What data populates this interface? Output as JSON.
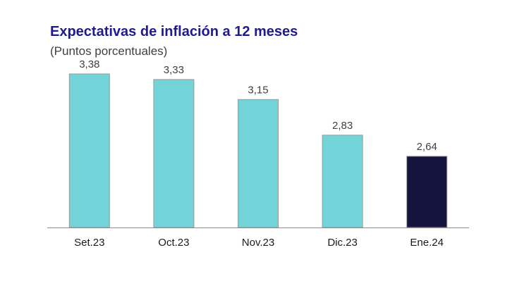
{
  "chart_data": {
    "type": "bar",
    "title": "Expectativas de inflación a 12 meses",
    "subtitle": "(Puntos porcentuales)",
    "categories": [
      "Set.23",
      "Oct.23",
      "Nov.23",
      "Dic.23",
      "Ene.24"
    ],
    "values": [
      3.38,
      3.33,
      3.15,
      2.83,
      2.64
    ],
    "value_labels": [
      "3,38",
      "3,33",
      "3,15",
      "2,83",
      "2,64"
    ],
    "ylim": [
      2.0,
      3.5
    ],
    "grid": false,
    "legend": "none",
    "colors": {
      "bar": "#72d3d8",
      "bar_highlight": "#15143f",
      "bar_edge": "#9a9a9a",
      "axis": "#8c8c8c",
      "title": "#1f1a8f"
    },
    "highlight_index": 4
  }
}
